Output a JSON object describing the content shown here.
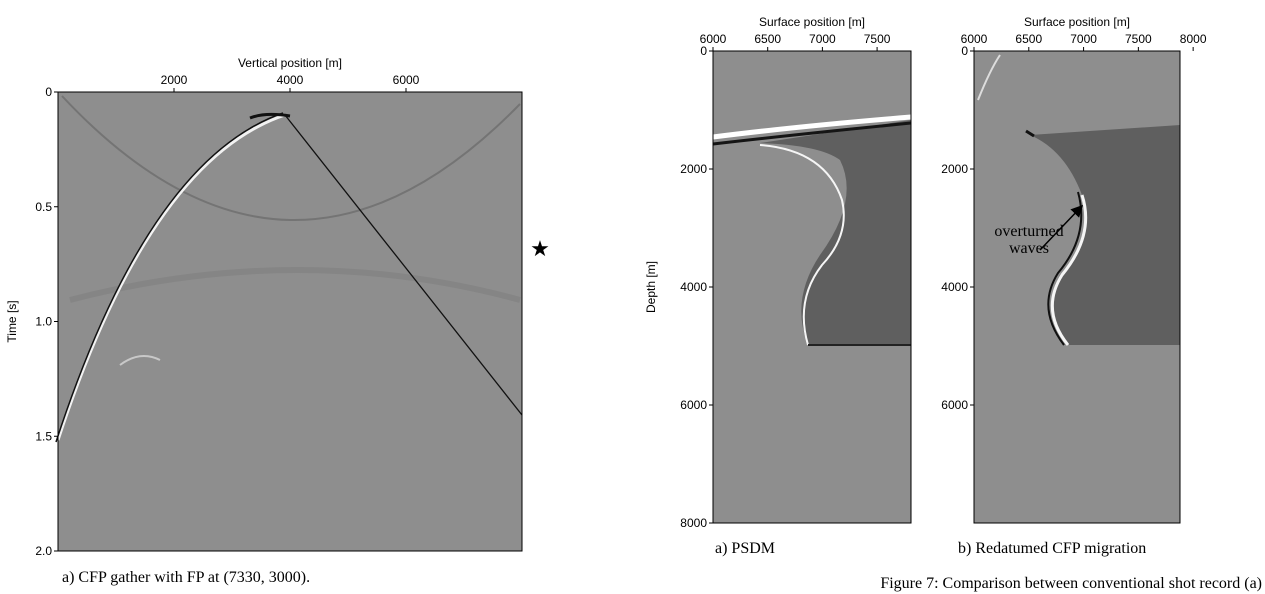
{
  "figures": [
    {
      "x_label": "Vertical position [m]",
      "y_label": "Time [s]",
      "xlim": [
        0,
        8000
      ],
      "ylim": [
        0,
        2
      ],
      "xticks": [
        2000,
        4000,
        6000
      ],
      "yticks": [
        0,
        {
          "value": 0.5,
          "label": "0.5"
        },
        {
          "value": 1,
          "label": "1.0"
        },
        {
          "value": 1.5,
          "label": "1.5"
        },
        {
          "value": 2,
          "label": "2.0"
        }
      ],
      "caption": "a) CFP gather with FP at (7330, 3000).",
      "marker": "★"
    },
    {
      "x_label": "Surface position [m]",
      "y_label": "Depth [m]",
      "xlim": [
        6000,
        7810
      ],
      "ylim": [
        0,
        8000
      ],
      "xticks": [
        6000,
        6500,
        7000,
        7500
      ],
      "yticks": [
        0,
        2000,
        4000,
        6000,
        8000
      ],
      "caption": "a) PSDM"
    },
    {
      "x_label": "Surface position [m]",
      "xlim": [
        6000,
        7880
      ],
      "ylim": [
        0,
        8000
      ],
      "xticks": [
        6000,
        6500,
        7000,
        7500,
        8000
      ],
      "yticks": [
        0,
        2000,
        4000,
        6000
      ],
      "caption": "b) Redatumed CFP migration",
      "annotation": [
        "overturned",
        "waves"
      ]
    }
  ],
  "figure_caption": "Figure 7: Comparison between conventional shot record (a)"
}
